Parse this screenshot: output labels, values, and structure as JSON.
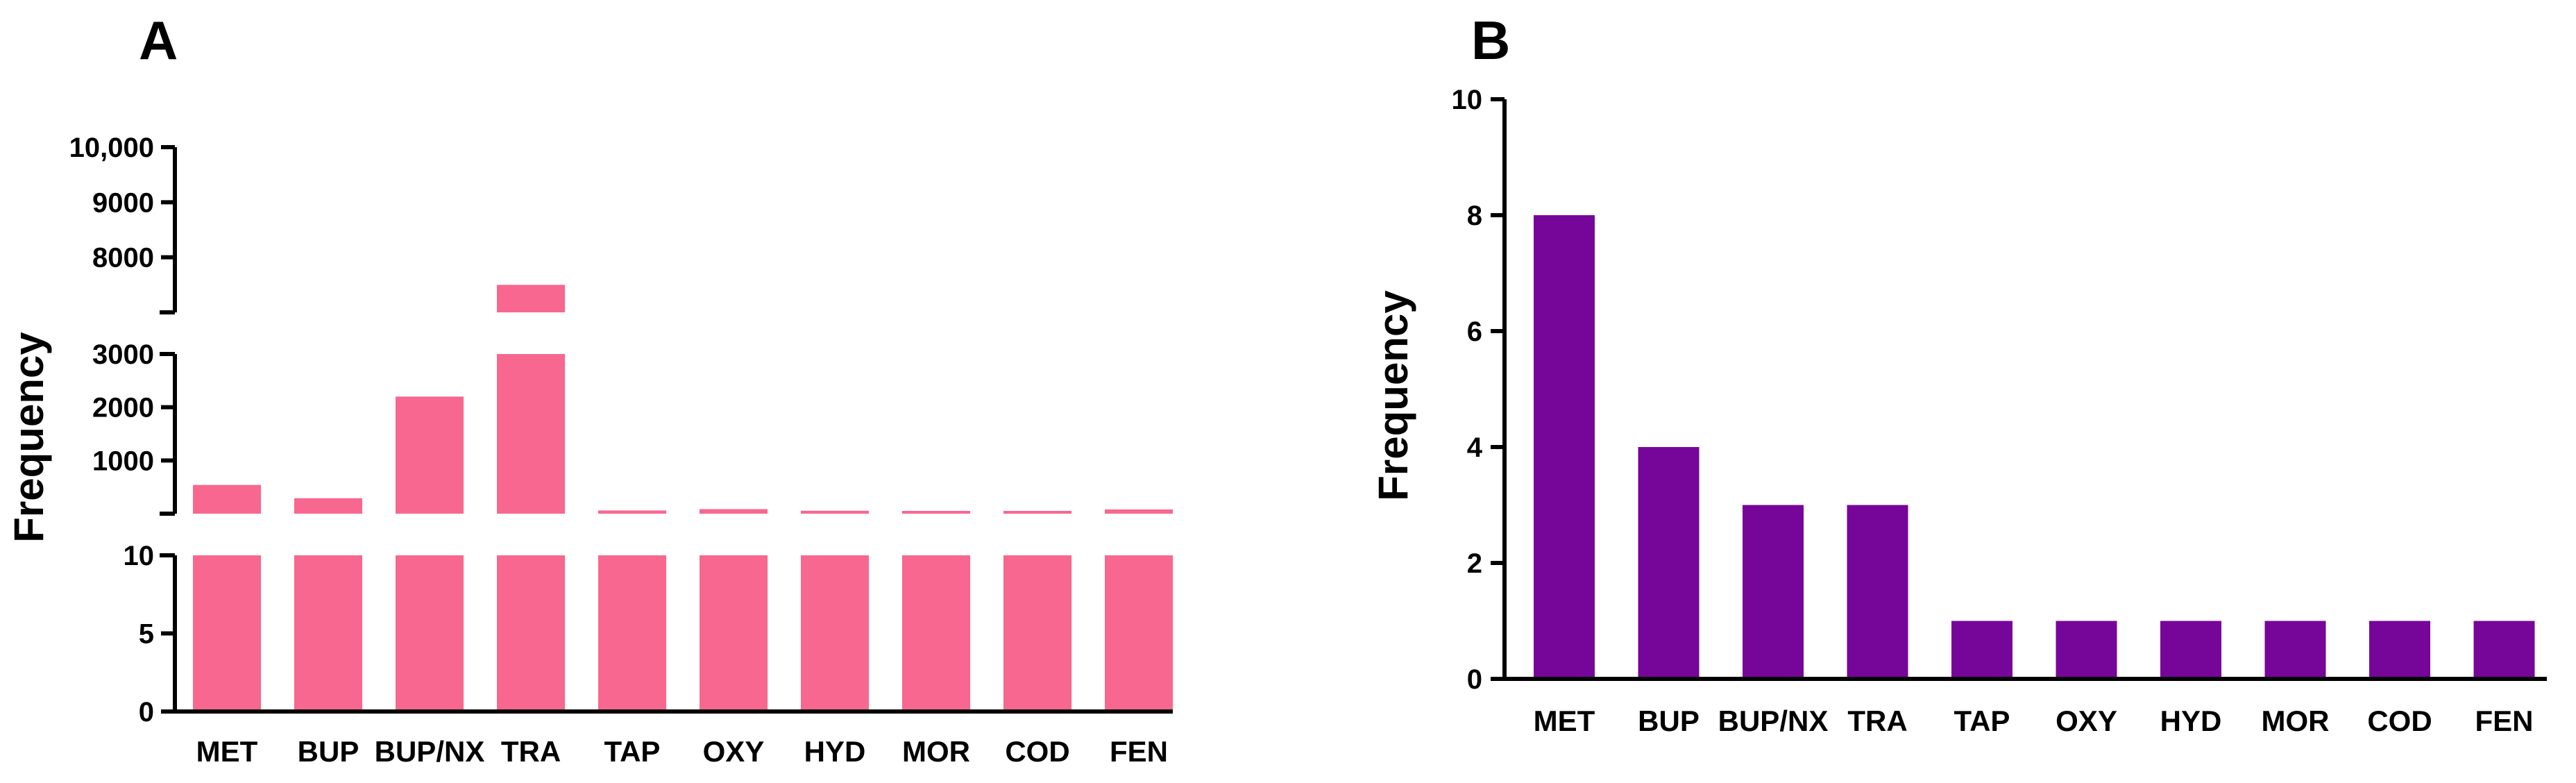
{
  "chart_data": [
    {
      "panel": "A",
      "type": "bar",
      "title": "",
      "xlabel": "",
      "ylabel": "Frequency",
      "color": "#F7678F",
      "axis_break": true,
      "categories": [
        "MET",
        "BUP",
        "BUP/NX",
        "TRA",
        "TAP",
        "OXY",
        "HYD",
        "MOR",
        "COD",
        "FEN"
      ],
      "values": [
        540,
        290,
        2200,
        7500,
        60,
        85,
        55,
        15,
        10,
        80
      ],
      "segments": [
        {
          "ylim": [
            0,
            10
          ],
          "ticks": [
            0,
            5,
            10
          ],
          "tick_labels": [
            "0",
            "5",
            "10"
          ]
        },
        {
          "ylim": [
            0,
            3000
          ],
          "ticks": [
            1000,
            2000,
            3000
          ],
          "tick_labels": [
            "1000",
            "2000",
            "3000"
          ]
        },
        {
          "ylim": [
            7000,
            10000
          ],
          "ticks": [
            8000,
            9000,
            10000
          ],
          "tick_labels": [
            "8000",
            "9000",
            "10,000"
          ]
        }
      ]
    },
    {
      "panel": "B",
      "type": "bar",
      "title": "",
      "xlabel": "",
      "ylabel": "Frequency",
      "color": "#760699",
      "categories": [
        "MET",
        "BUP",
        "BUP/NX",
        "TRA",
        "TAP",
        "OXY",
        "HYD",
        "MOR",
        "COD",
        "FEN"
      ],
      "values": [
        8,
        4,
        3,
        3,
        1,
        1,
        1,
        1,
        1,
        1
      ],
      "ylim": [
        0,
        10
      ],
      "ticks": [
        0,
        2,
        4,
        6,
        8,
        10
      ],
      "tick_labels": [
        "0",
        "2",
        "4",
        "6",
        "8",
        "10"
      ]
    }
  ]
}
